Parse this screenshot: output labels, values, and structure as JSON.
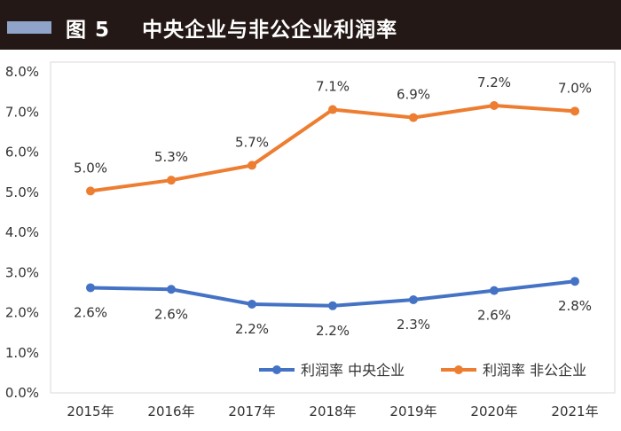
{
  "header": {
    "figure_label": "图 5",
    "title": "中央企业与非公企业利润率"
  },
  "chart_data": {
    "type": "line",
    "title": "中央企业与非公企业利润率",
    "categories": [
      "2015年",
      "2016年",
      "2017年",
      "2018年",
      "2019年",
      "2020年",
      "2021年"
    ],
    "series": [
      {
        "name": "利润率 中央企业",
        "color": "#4472c4",
        "values": [
          2.62,
          2.58,
          2.21,
          2.17,
          2.32,
          2.55,
          2.78
        ],
        "labels": [
          "2.6%",
          "2.6%",
          "2.2%",
          "2.2%",
          "2.3%",
          "2.6%",
          "2.8%"
        ]
      },
      {
        "name": "利润率 非公企业",
        "color": "#ed7d31",
        "values": [
          5.03,
          5.3,
          5.67,
          7.06,
          6.86,
          7.16,
          7.02
        ],
        "labels": [
          "5.0%",
          "5.3%",
          "5.7%",
          "7.1%",
          "6.9%",
          "7.2%",
          "7.0%"
        ]
      }
    ],
    "yticks": [
      "0.0%",
      "1.0%",
      "2.0%",
      "3.0%",
      "4.0%",
      "5.0%",
      "6.0%",
      "7.0%",
      "8.0%"
    ],
    "ylim": [
      0,
      8
    ],
    "xlabel": "",
    "ylabel": "",
    "grid": false,
    "legend_position": "bottom-right"
  }
}
